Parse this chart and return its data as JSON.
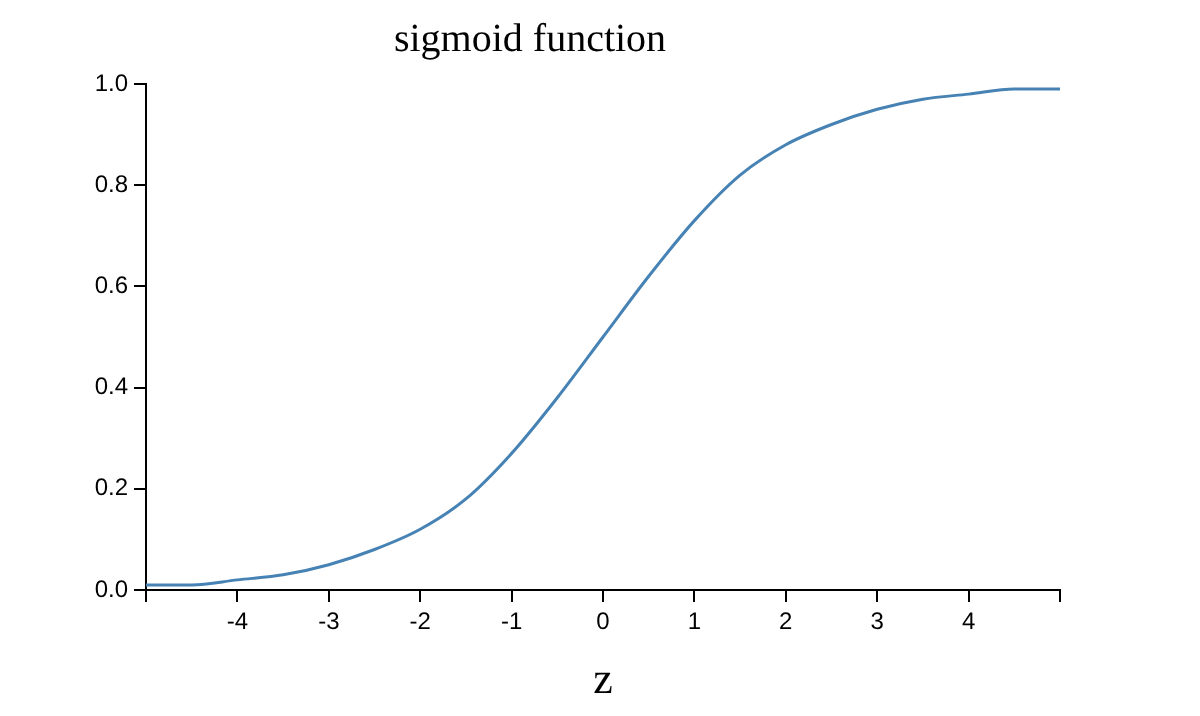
{
  "chart_data": {
    "type": "line",
    "title": "sigmoid function",
    "xlabel": "z",
    "x": [
      -5,
      -4.5,
      -4,
      -3.5,
      -3,
      -2.5,
      -2,
      -1.5,
      -1,
      -0.5,
      0,
      0.5,
      1,
      1.5,
      2,
      2.5,
      3,
      3.5,
      4,
      4.5,
      5
    ],
    "series": [
      {
        "color": "#4682b4",
        "values": [
          0.01,
          0.01,
          0.02,
          0.03,
          0.05,
          0.08,
          0.12,
          0.18,
          0.27,
          0.38,
          0.5,
          0.62,
          0.73,
          0.82,
          0.88,
          0.92,
          0.95,
          0.97,
          0.98,
          0.99,
          0.99
        ]
      }
    ],
    "xlim": [
      -5,
      5
    ],
    "xticks": [
      {
        "value": -5,
        "label": null
      },
      -4,
      -3,
      -2,
      -1,
      0,
      1,
      2,
      3,
      4,
      {
        "value": 5,
        "label": null
      }
    ],
    "ylim": [
      0,
      1
    ],
    "yticks": [
      {
        "value": 0,
        "label": "0.0"
      },
      {
        "value": 0.2,
        "label": "0.2"
      },
      {
        "value": 0.4,
        "label": "0.4"
      },
      {
        "value": 0.6,
        "label": "0.6"
      },
      {
        "value": 0.8,
        "label": "0.8"
      },
      {
        "value": 1,
        "label": "1.0"
      }
    ],
    "grid": false,
    "legend": false,
    "marker": "none",
    "line_style": "solid"
  }
}
